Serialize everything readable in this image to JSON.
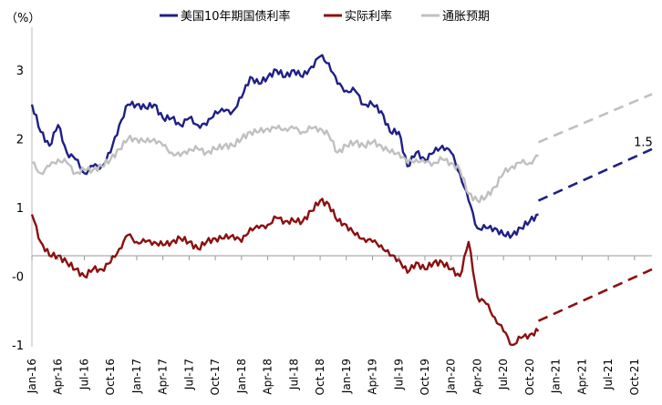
{
  "chart_data": {
    "type": "line",
    "title": "",
    "ylabel": "（%）",
    "ylim": [
      -1,
      3.5
    ],
    "yticks": [
      {
        "value": 3,
        "label": "3"
      },
      {
        "value": 2,
        "label": "2"
      },
      {
        "value": 1,
        "label": "1"
      },
      {
        "value": 0,
        "label": "-0"
      },
      {
        "value": -1,
        "label": "-1"
      }
    ],
    "xlim": [
      "2016-01",
      "2021-12"
    ],
    "xticks": [
      "Jan-16",
      "Apr-16",
      "Jul-16",
      "Oct-16",
      "Jan-17",
      "Apr-17",
      "Jul-17",
      "Oct-17",
      "Jan-18",
      "Apr-18",
      "Jul-18",
      "Oct-18",
      "Jan-19",
      "Apr-19",
      "Jul-19",
      "Oct-19",
      "Jan-20",
      "Apr-20",
      "Jul-20",
      "Oct-20",
      "Jan-21",
      "Apr-21",
      "Jul-21",
      "Oct-21"
    ],
    "legend_position": "top",
    "annotations": [
      {
        "text": "1.5",
        "x": "2021-11",
        "y": 1.95
      }
    ],
    "series": [
      {
        "name": "美国10年期国债利率",
        "color": "#1f1f87",
        "x": [
          "2016-01",
          "2016-02",
          "2016-03",
          "2016-04",
          "2016-05",
          "2016-06",
          "2016-07",
          "2016-08",
          "2016-09",
          "2016-10",
          "2016-11",
          "2016-12",
          "2017-01",
          "2017-02",
          "2017-03",
          "2017-04",
          "2017-05",
          "2017-06",
          "2017-07",
          "2017-08",
          "2017-09",
          "2017-10",
          "2017-11",
          "2017-12",
          "2018-01",
          "2018-02",
          "2018-03",
          "2018-04",
          "2018-05",
          "2018-06",
          "2018-07",
          "2018-08",
          "2018-09",
          "2018-10",
          "2018-11",
          "2018-12",
          "2019-01",
          "2019-02",
          "2019-03",
          "2019-04",
          "2019-05",
          "2019-06",
          "2019-07",
          "2019-08",
          "2019-09",
          "2019-10",
          "2019-11",
          "2019-12",
          "2020-01",
          "2020-02",
          "2020-03",
          "2020-04",
          "2020-05",
          "2020-06",
          "2020-07",
          "2020-08",
          "2020-09",
          "2020-10",
          "2020-11"
        ],
        "values": [
          2.5,
          2.1,
          1.9,
          2.2,
          1.8,
          1.7,
          1.5,
          1.6,
          1.6,
          1.8,
          2.2,
          2.5,
          2.5,
          2.45,
          2.5,
          2.3,
          2.3,
          2.2,
          2.3,
          2.2,
          2.2,
          2.4,
          2.4,
          2.4,
          2.6,
          2.9,
          2.8,
          2.9,
          3.0,
          2.9,
          3.0,
          2.9,
          3.05,
          3.2,
          3.1,
          2.8,
          2.7,
          2.7,
          2.5,
          2.5,
          2.4,
          2.1,
          2.1,
          1.6,
          1.8,
          1.7,
          1.8,
          1.9,
          1.8,
          1.5,
          1.1,
          0.7,
          0.7,
          0.7,
          0.6,
          0.6,
          0.7,
          0.8,
          0.9
        ]
      },
      {
        "name": "实际利率",
        "color": "#8b1010",
        "x": [
          "2016-01",
          "2016-02",
          "2016-03",
          "2016-04",
          "2016-05",
          "2016-06",
          "2016-07",
          "2016-08",
          "2016-09",
          "2016-10",
          "2016-11",
          "2016-12",
          "2017-01",
          "2017-02",
          "2017-03",
          "2017-04",
          "2017-05",
          "2017-06",
          "2017-07",
          "2017-08",
          "2017-09",
          "2017-10",
          "2017-11",
          "2017-12",
          "2018-01",
          "2018-02",
          "2018-03",
          "2018-04",
          "2018-05",
          "2018-06",
          "2018-07",
          "2018-08",
          "2018-09",
          "2018-10",
          "2018-11",
          "2018-12",
          "2019-01",
          "2019-02",
          "2019-03",
          "2019-04",
          "2019-05",
          "2019-06",
          "2019-07",
          "2019-08",
          "2019-09",
          "2019-10",
          "2019-11",
          "2019-12",
          "2020-01",
          "2020-02",
          "2020-03",
          "2020-04",
          "2020-05",
          "2020-06",
          "2020-07",
          "2020-08",
          "2020-09",
          "2020-10",
          "2020-11"
        ],
        "values": [
          0.9,
          0.5,
          0.3,
          0.3,
          0.2,
          0.1,
          0.0,
          0.1,
          0.1,
          0.2,
          0.4,
          0.6,
          0.5,
          0.5,
          0.5,
          0.45,
          0.5,
          0.55,
          0.5,
          0.4,
          0.5,
          0.55,
          0.55,
          0.6,
          0.5,
          0.7,
          0.7,
          0.75,
          0.85,
          0.8,
          0.8,
          0.8,
          0.95,
          1.1,
          1.05,
          0.8,
          0.75,
          0.6,
          0.55,
          0.5,
          0.45,
          0.3,
          0.25,
          0.05,
          0.2,
          0.1,
          0.2,
          0.2,
          0.1,
          0.0,
          0.5,
          -0.3,
          -0.4,
          -0.6,
          -0.8,
          -1.0,
          -0.9,
          -0.85,
          -0.8
        ]
      },
      {
        "name": "通胀预期",
        "color": "#c0c0c0",
        "x": [
          "2016-01",
          "2016-02",
          "2016-03",
          "2016-04",
          "2016-05",
          "2016-06",
          "2016-07",
          "2016-08",
          "2016-09",
          "2016-10",
          "2016-11",
          "2016-12",
          "2017-01",
          "2017-02",
          "2017-03",
          "2017-04",
          "2017-05",
          "2017-06",
          "2017-07",
          "2017-08",
          "2017-09",
          "2017-10",
          "2017-11",
          "2017-12",
          "2018-01",
          "2018-02",
          "2018-03",
          "2018-04",
          "2018-05",
          "2018-06",
          "2018-07",
          "2018-08",
          "2018-09",
          "2018-10",
          "2018-11",
          "2018-12",
          "2019-01",
          "2019-02",
          "2019-03",
          "2019-04",
          "2019-05",
          "2019-06",
          "2019-07",
          "2019-08",
          "2019-09",
          "2019-10",
          "2019-11",
          "2019-12",
          "2020-01",
          "2020-02",
          "2020-03",
          "2020-04",
          "2020-05",
          "2020-06",
          "2020-07",
          "2020-08",
          "2020-09",
          "2020-10",
          "2020-11"
        ],
        "values": [
          1.65,
          1.5,
          1.6,
          1.7,
          1.65,
          1.5,
          1.55,
          1.55,
          1.6,
          1.7,
          1.85,
          2.0,
          2.0,
          1.95,
          2.0,
          1.9,
          1.8,
          1.75,
          1.85,
          1.85,
          1.8,
          1.85,
          1.9,
          1.9,
          2.0,
          2.1,
          2.1,
          2.15,
          2.15,
          2.15,
          2.15,
          2.1,
          2.15,
          2.15,
          2.05,
          1.8,
          1.9,
          1.95,
          1.9,
          1.95,
          1.9,
          1.8,
          1.8,
          1.65,
          1.7,
          1.65,
          1.65,
          1.7,
          1.65,
          1.55,
          1.2,
          1.1,
          1.15,
          1.3,
          1.5,
          1.6,
          1.65,
          1.65,
          1.75
        ]
      }
    ],
    "projections": [
      {
        "name": "美国10年期国债利率",
        "color": "#1f1f87",
        "x": [
          "2020-11",
          "2021-12"
        ],
        "values": [
          1.1,
          1.85
        ]
      },
      {
        "name": "实际利率",
        "color": "#8b1010",
        "x": [
          "2020-11",
          "2021-12"
        ],
        "values": [
          -0.65,
          0.1
        ]
      },
      {
        "name": "通胀预期",
        "color": "#c0c0c0",
        "x": [
          "2020-11",
          "2021-12"
        ],
        "values": [
          1.95,
          2.65
        ]
      }
    ]
  }
}
